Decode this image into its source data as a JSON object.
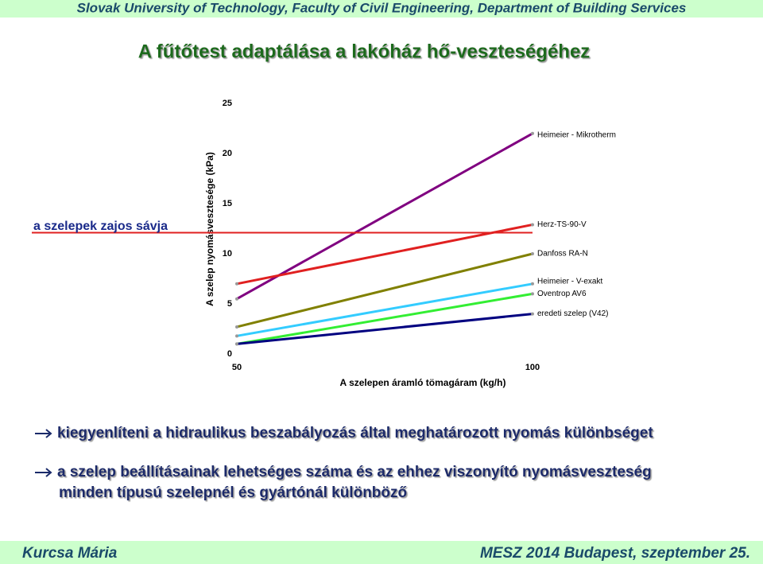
{
  "header": "Slovak University of Technology, Faculty of Civil Engineering, Department of Building Services",
  "title": "A fűtőtest  adaptálása a lakóház hő-veszteségéhez",
  "chart_data": {
    "type": "line",
    "ylabel": "A szelep nyomásvesztesége (kPa)",
    "xlabel": "A szelepen áramló tömagáram (kg/h)",
    "x": [
      50,
      100
    ],
    "xlim": [
      50,
      100
    ],
    "xticks": [
      50,
      100
    ],
    "ylim": [
      0,
      25
    ],
    "yticks": [
      0,
      5,
      10,
      15,
      20,
      25
    ],
    "series": [
      {
        "name": "Heimeier - Mikrotherm",
        "color": "#800080",
        "values": [
          5.5,
          22
        ]
      },
      {
        "name": "Herz-TS-90-V",
        "color": "#e02020",
        "values": [
          7,
          12.9
        ]
      },
      {
        "name": "Danfoss RA-N",
        "color": "#808000",
        "values": [
          2.7,
          10
        ]
      },
      {
        "name": "Heimeier - V-exakt",
        "color": "#33ccff",
        "values": [
          1.8,
          7
        ]
      },
      {
        "name": "Oventrop AV6",
        "color": "#33ee33",
        "values": [
          1,
          6
        ]
      },
      {
        "name": "eredeti szelep (V42)",
        "color": "#000080",
        "values": [
          1,
          4
        ]
      }
    ],
    "noise_line": {
      "label": "a szelepek zajos sávja",
      "value": 12.1,
      "color": "#e02020"
    }
  },
  "bullets": [
    [
      "kiegyenlíteni a hidraulikus beszabályozás által meghatározott nyomás különbséget"
    ],
    [
      "a szelep beállításainak lehetséges száma és az ehhez viszonyító nyomásveszteség",
      "minden típusú szelepnél és gyártónál különböző"
    ]
  ],
  "footer": {
    "left": "Kurcsa Mária",
    "right": "MESZ 2014 Budapest, szeptember 25."
  }
}
